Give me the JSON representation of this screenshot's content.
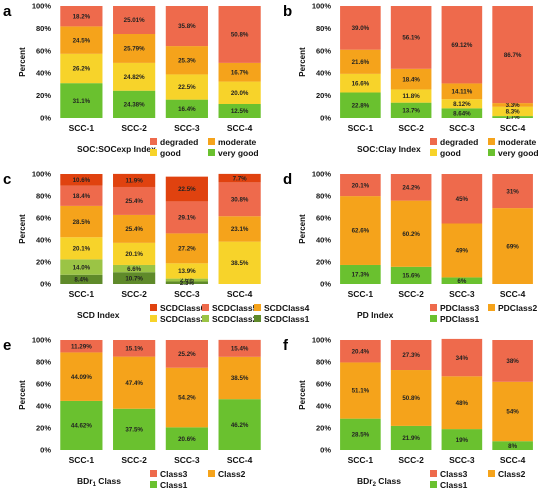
{
  "colors": {
    "very_good": "#6ac12f",
    "good": "#f7d32a",
    "moderate": "#f5a31b",
    "degraded": "#ee6a4c",
    "class6": "#e0420f",
    "class5": "#ee6a4c",
    "class4": "#f5a31b",
    "class3": "#f7d32a",
    "class2": "#9bc445",
    "class1": "#5f8a2a"
  },
  "chart_data": [
    {
      "panel": "a",
      "type": "bar",
      "stacked": true,
      "categories": [
        "SCC-1",
        "SCC-2",
        "SCC-3",
        "SCC-4"
      ],
      "ylabel": "Percent",
      "yticks": [
        "0%",
        "20%",
        "40%",
        "60%",
        "80%",
        "100%"
      ],
      "ylim": [
        0,
        100
      ],
      "xlabel": "SOC:SOCexp Index",
      "xlabel_sub": "",
      "legend_cols": 2,
      "series": [
        {
          "name": "very good",
          "color_key": "very_good",
          "values": [
            31.1,
            24.38,
            16.4,
            12.5
          ],
          "labels": [
            "31.1%",
            "24.38%",
            "16.4%",
            "12.5%"
          ]
        },
        {
          "name": "good",
          "color_key": "good",
          "values": [
            26.2,
            24.82,
            22.5,
            20.0
          ],
          "labels": [
            "26.2%",
            "24.82%",
            "22.5%",
            "20.0%"
          ]
        },
        {
          "name": "moderate",
          "color_key": "moderate",
          "values": [
            24.5,
            25.79,
            25.3,
            16.7
          ],
          "labels": [
            "24.5%",
            "25.79%",
            "25.3%",
            "16.7%"
          ]
        },
        {
          "name": "degraded",
          "color_key": "degraded",
          "values": [
            18.2,
            25.01,
            35.8,
            50.8
          ],
          "labels": [
            "18.2%",
            "25.01%",
            "35.8%",
            "50.8%"
          ]
        }
      ],
      "legend_order": [
        "degraded",
        "moderate",
        "good",
        "very good"
      ]
    },
    {
      "panel": "b",
      "type": "bar",
      "stacked": true,
      "categories": [
        "SCC-1",
        "SCC-2",
        "SCC-3",
        "SCC-4"
      ],
      "ylabel": "Percent",
      "yticks": [
        "0%",
        "20%",
        "40%",
        "60%",
        "80%",
        "100%"
      ],
      "ylim": [
        0,
        100
      ],
      "xlabel": "SOC:Clay Index",
      "xlabel_sub": "",
      "legend_cols": 2,
      "series": [
        {
          "name": "very good",
          "color_key": "very_good",
          "values": [
            22.8,
            13.7,
            8.64,
            1.7
          ],
          "labels": [
            "22.8%",
            "13.7%",
            "8.64%",
            "1.7%"
          ]
        },
        {
          "name": "good",
          "color_key": "good",
          "values": [
            16.6,
            11.8,
            8.12,
            8.3
          ],
          "labels": [
            "16.6%",
            "11.8%",
            "8.12%",
            "8.3%"
          ]
        },
        {
          "name": "moderate",
          "color_key": "moderate",
          "values": [
            21.6,
            18.4,
            14.11,
            3.3
          ],
          "labels": [
            "21.6%",
            "18.4%",
            "14.11%",
            "3.3%"
          ]
        },
        {
          "name": "degraded",
          "color_key": "degraded",
          "values": [
            39.0,
            56.1,
            69.12,
            86.7
          ],
          "labels": [
            "39.0%",
            "56.1%",
            "69.12%",
            "86.7%"
          ]
        }
      ],
      "legend_order": [
        "degraded",
        "moderate",
        "good",
        "very good"
      ]
    },
    {
      "panel": "c",
      "type": "bar",
      "stacked": true,
      "categories": [
        "SCC-1",
        "SCC-2",
        "SCC-3",
        "SCC-4"
      ],
      "ylabel": "Percent",
      "yticks": [
        "0%",
        "20%",
        "40%",
        "60%",
        "80%",
        "100%"
      ],
      "ylim": [
        0,
        100
      ],
      "xlabel": "SCD Index",
      "xlabel_sub": "",
      "legend_cols": 3,
      "series": [
        {
          "name": "SCDClass1",
          "color_key": "class1",
          "values": [
            8.4,
            10.7,
            2.3,
            0
          ],
          "labels": [
            "8.4%",
            "10.7%",
            "2.3%",
            ""
          ]
        },
        {
          "name": "SCDClass2",
          "color_key": "class2",
          "values": [
            14.0,
            6.6,
            2.6,
            0
          ],
          "labels": [
            "14.0%",
            "6.6%",
            "2.6%",
            ""
          ]
        },
        {
          "name": "SCDClass3",
          "color_key": "class3",
          "values": [
            20.1,
            20.1,
            13.9,
            38.5
          ],
          "labels": [
            "20.1%",
            "20.1%",
            "13.9%",
            "38.5%"
          ]
        },
        {
          "name": "SCDClass4",
          "color_key": "class4",
          "values": [
            28.5,
            25.4,
            27.2,
            23.1
          ],
          "labels": [
            "28.5%",
            "25.4%",
            "27.2%",
            "23.1%"
          ]
        },
        {
          "name": "SCDClass5",
          "color_key": "class5",
          "values": [
            18.4,
            25.4,
            29.1,
            30.8
          ],
          "labels": [
            "18.4%",
            "25.4%",
            "29.1%",
            "30.8%"
          ]
        },
        {
          "name": "SCDClass6",
          "color_key": "class6",
          "values": [
            10.6,
            11.9,
            22.5,
            7.7
          ],
          "labels": [
            "10.6%",
            "11.9%",
            "22.5%",
            "7.7%"
          ]
        }
      ],
      "legend_order": [
        "SCDClass6",
        "SCDClass5",
        "SCDClass4",
        "SCDClass3",
        "SCDClass2",
        "SCDClass1"
      ]
    },
    {
      "panel": "d",
      "type": "bar",
      "stacked": true,
      "categories": [
        "SCC-1",
        "SCC-2",
        "SCC-3",
        "SCC-4"
      ],
      "ylabel": "Percent",
      "yticks": [
        "0%",
        "20%",
        "40%",
        "60%",
        "80%",
        "100%"
      ],
      "ylim": [
        0,
        100
      ],
      "xlabel": "PD Index",
      "xlabel_sub": "",
      "legend_cols": 2,
      "series": [
        {
          "name": "PDClass1",
          "color_key": "very_good",
          "values": [
            17.3,
            15.6,
            6,
            0
          ],
          "labels": [
            "17.3%",
            "15.6%",
            "6%",
            ""
          ]
        },
        {
          "name": "PDClass2",
          "color_key": "moderate",
          "values": [
            62.6,
            60.2,
            49,
            69
          ],
          "labels": [
            "62.6%",
            "60.2%",
            "49%",
            "69%"
          ]
        },
        {
          "name": "PDClass3",
          "color_key": "degraded",
          "values": [
            20.1,
            24.2,
            45,
            31
          ],
          "labels": [
            "20.1%",
            "24.2%",
            "45%",
            "31%"
          ]
        }
      ],
      "legend_order": [
        "PDClass3",
        "PDClass2",
        "PDClass1"
      ]
    },
    {
      "panel": "e",
      "type": "bar",
      "stacked": true,
      "categories": [
        "SCC-1",
        "SCC-2",
        "SCC-3",
        "SCC-4"
      ],
      "ylabel": "Percent",
      "yticks": [
        "0%",
        "20%",
        "40%",
        "60%",
        "80%",
        "100%"
      ],
      "ylim": [
        0,
        100
      ],
      "xlabel": "BDr",
      "xlabel_sub": "1",
      "xlabel_suffix": " Class",
      "legend_cols": 2,
      "series": [
        {
          "name": "Class1",
          "color_key": "very_good",
          "values": [
            44.62,
            37.5,
            20.6,
            46.2
          ],
          "labels": [
            "44.62%",
            "37.5%",
            "20.6%",
            "46.2%"
          ]
        },
        {
          "name": "Class2",
          "color_key": "moderate",
          "values": [
            44.09,
            47.4,
            54.2,
            38.5
          ],
          "labels": [
            "44.09%",
            "47.4%",
            "54.2%",
            "38.5%"
          ]
        },
        {
          "name": "Class3",
          "color_key": "degraded",
          "values": [
            11.29,
            15.1,
            25.2,
            15.4
          ],
          "labels": [
            "11.29%",
            "15.1%",
            "25.2%",
            "15.4%"
          ]
        }
      ],
      "legend_order": [
        "Class3",
        "Class2",
        "Class1"
      ]
    },
    {
      "panel": "f",
      "type": "bar",
      "stacked": true,
      "categories": [
        "SCC-1",
        "SCC-2",
        "SCC-3",
        "SCC-4"
      ],
      "ylabel": "Percent",
      "yticks": [
        "0%",
        "20%",
        "40%",
        "60%",
        "80%",
        "100%"
      ],
      "ylim": [
        0,
        100
      ],
      "xlabel": "BDr",
      "xlabel_sub": "2",
      "xlabel_suffix": " Class",
      "legend_cols": 2,
      "series": [
        {
          "name": "Class1",
          "color_key": "very_good",
          "values": [
            28.5,
            21.9,
            19,
            8
          ],
          "labels": [
            "28.5%",
            "21.9%",
            "19%",
            "8%"
          ]
        },
        {
          "name": "Class2",
          "color_key": "moderate",
          "values": [
            51.1,
            50.8,
            48,
            54
          ],
          "labels": [
            "51.1%",
            "50.8%",
            "48%",
            "54%"
          ]
        },
        {
          "name": "Class3",
          "color_key": "degraded",
          "values": [
            20.4,
            27.3,
            34,
            38
          ],
          "labels": [
            "20.4%",
            "27.3%",
            "34%",
            "38%"
          ]
        }
      ],
      "legend_order": [
        "Class3",
        "Class2",
        "Class1"
      ]
    }
  ]
}
